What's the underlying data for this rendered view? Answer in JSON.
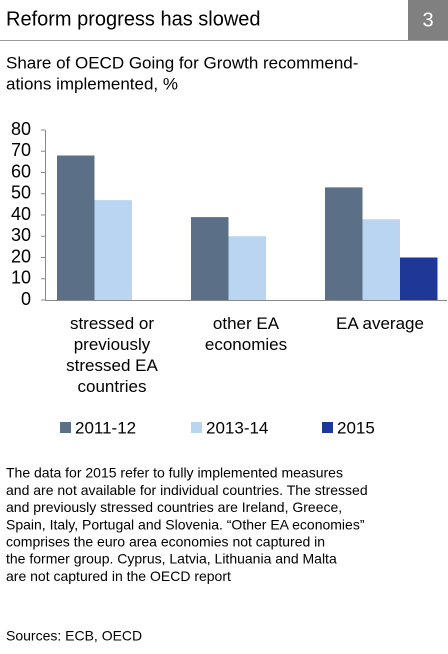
{
  "badge": "3",
  "chart_data": {
    "type": "bar",
    "title": "Reform progress has slowed",
    "subtitle": [
      "Share of OECD Going for Growth recommend-",
      "ations implemented, %"
    ],
    "categories": [
      "stressed or previously stressed EA countries",
      "other EA economies",
      "EA average"
    ],
    "series": [
      {
        "name": "2011-12",
        "color": "#5b6f87",
        "values": [
          68,
          39,
          53
        ]
      },
      {
        "name": "2013-14",
        "color": "#b9d5f1",
        "values": [
          47,
          30,
          38
        ]
      },
      {
        "name": "2015",
        "color": "#1f3796",
        "values": [
          null,
          null,
          20
        ]
      }
    ],
    "ylim": [
      0,
      80
    ],
    "yticks": [
      0,
      10,
      20,
      30,
      40,
      50,
      60,
      70,
      80
    ],
    "grid": false,
    "legend": "bottom"
  },
  "notes": [
    "The data for  2015 refer to fully implemented measures",
    "and are not  available for individual countries. The stressed",
    "and previously stressed countries are Ireland, Greece,",
    "Spain, Italy, Portugal and  Slovenia. “Other EA economies”",
    "comprises the euro area economies not captured in",
    "the former group. Cyprus, Latvia, Lithuania and Malta",
    "are not captured in the OECD report"
  ],
  "sources": "Sources: ECB, OECD"
}
